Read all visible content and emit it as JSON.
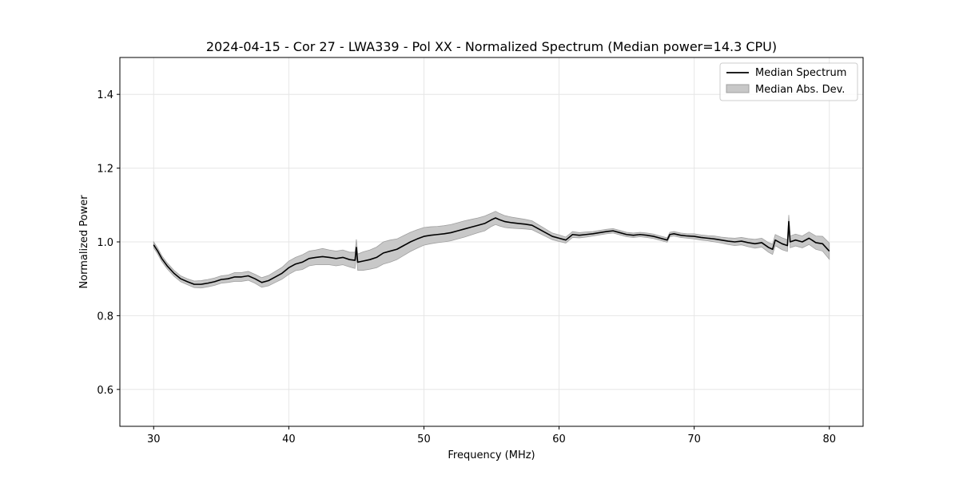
{
  "chart_data": {
    "type": "line",
    "title": "2024-04-15 - Cor 27 - LWA339 - Pol XX - Normalized Spectrum (Median power=14.3 CPU)",
    "xlabel": "Frequency (MHz)",
    "ylabel": "Normalized Power",
    "xlim": [
      27.5,
      82.5
    ],
    "ylim": [
      0.5,
      1.5
    ],
    "xticks": [
      30,
      40,
      50,
      60,
      70,
      80
    ],
    "yticks": [
      0.6,
      0.8,
      1.0,
      1.2,
      1.4
    ],
    "xtick_labels": [
      "30",
      "40",
      "50",
      "60",
      "70",
      "80"
    ],
    "ytick_labels": [
      "0.6",
      "0.8",
      "1.0",
      "1.2",
      "1.4"
    ],
    "grid": true,
    "legend_position": "top-right",
    "legend": [
      "Median Spectrum",
      "Median Abs. Dev."
    ],
    "series": [
      {
        "name": "Median Spectrum",
        "color": "#000000",
        "x": [
          30,
          30.3,
          30.6,
          31,
          31.5,
          32,
          32.5,
          33,
          33.5,
          34,
          34.5,
          35,
          35.5,
          36,
          36.5,
          37,
          37.5,
          38,
          38.5,
          39,
          39.5,
          40,
          40.5,
          41,
          41.5,
          42,
          42.5,
          43,
          43.5,
          44,
          44.5,
          44.9,
          45,
          45.1,
          45.5,
          46,
          46.5,
          47,
          47.5,
          48,
          48.5,
          49,
          49.5,
          50,
          50.5,
          51,
          51.5,
          52,
          52.5,
          53,
          53.5,
          54,
          54.5,
          55,
          55.3,
          55.6,
          56,
          56.5,
          57,
          57.5,
          58,
          58.5,
          59,
          59.5,
          60,
          60.5,
          61,
          61.5,
          62,
          62.5,
          63,
          63.5,
          64,
          64.5,
          65,
          65.5,
          66,
          66.5,
          67,
          67.5,
          68,
          68.2,
          68.5,
          69,
          69.5,
          70,
          70.5,
          71,
          71.5,
          72,
          72.5,
          73,
          73.5,
          74,
          74.5,
          75,
          75.5,
          75.8,
          76,
          76.5,
          76.9,
          77,
          77.1,
          77.5,
          78,
          78.5,
          79,
          79.5,
          80
        ],
        "values": [
          0.992,
          0.975,
          0.955,
          0.935,
          0.915,
          0.9,
          0.892,
          0.885,
          0.885,
          0.888,
          0.892,
          0.898,
          0.9,
          0.905,
          0.905,
          0.908,
          0.9,
          0.89,
          0.895,
          0.905,
          0.915,
          0.93,
          0.94,
          0.945,
          0.955,
          0.958,
          0.96,
          0.958,
          0.955,
          0.958,
          0.952,
          0.95,
          0.985,
          0.945,
          0.948,
          0.952,
          0.958,
          0.97,
          0.975,
          0.98,
          0.99,
          1.0,
          1.008,
          1.015,
          1.018,
          1.02,
          1.022,
          1.025,
          1.03,
          1.035,
          1.04,
          1.045,
          1.05,
          1.06,
          1.065,
          1.06,
          1.055,
          1.052,
          1.05,
          1.048,
          1.045,
          1.035,
          1.025,
          1.015,
          1.01,
          1.005,
          1.02,
          1.018,
          1.02,
          1.022,
          1.025,
          1.028,
          1.03,
          1.025,
          1.02,
          1.018,
          1.02,
          1.018,
          1.015,
          1.01,
          1.005,
          1.02,
          1.022,
          1.018,
          1.016,
          1.015,
          1.012,
          1.01,
          1.008,
          1.005,
          1.002,
          1.0,
          1.002,
          0.998,
          0.995,
          0.998,
          0.985,
          0.98,
          1.005,
          0.995,
          0.99,
          1.055,
          1.0,
          1.005,
          1.0,
          1.01,
          0.998,
          0.995,
          0.975
        ]
      }
    ],
    "band": {
      "name": "Median Abs. Dev.",
      "color": "#c8c8c8",
      "edge_color": "#a0a0a0",
      "dev": [
        0.008,
        0.008,
        0.008,
        0.008,
        0.008,
        0.008,
        0.008,
        0.009,
        0.01,
        0.01,
        0.01,
        0.01,
        0.01,
        0.012,
        0.012,
        0.012,
        0.012,
        0.013,
        0.014,
        0.015,
        0.016,
        0.018,
        0.018,
        0.02,
        0.02,
        0.02,
        0.022,
        0.02,
        0.02,
        0.02,
        0.02,
        0.022,
        0.022,
        0.022,
        0.025,
        0.026,
        0.028,
        0.03,
        0.03,
        0.028,
        0.027,
        0.026,
        0.025,
        0.024,
        0.023,
        0.022,
        0.022,
        0.022,
        0.022,
        0.022,
        0.021,
        0.02,
        0.02,
        0.018,
        0.018,
        0.017,
        0.016,
        0.015,
        0.014,
        0.013,
        0.012,
        0.011,
        0.01,
        0.009,
        0.009,
        0.008,
        0.008,
        0.007,
        0.007,
        0.006,
        0.006,
        0.006,
        0.006,
        0.006,
        0.006,
        0.006,
        0.006,
        0.006,
        0.006,
        0.006,
        0.006,
        0.006,
        0.006,
        0.006,
        0.006,
        0.007,
        0.007,
        0.007,
        0.008,
        0.008,
        0.009,
        0.01,
        0.01,
        0.011,
        0.012,
        0.012,
        0.013,
        0.014,
        0.015,
        0.016,
        0.016,
        0.018,
        0.016,
        0.016,
        0.016,
        0.017,
        0.018,
        0.02,
        0.022
      ]
    }
  }
}
